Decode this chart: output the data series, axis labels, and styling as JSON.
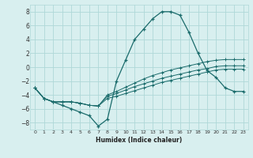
{
  "xlabel": "Humidex (Indice chaleur)",
  "background_color": "#d8efef",
  "grid_color": "#afd8d8",
  "line_color": "#1a6b6b",
  "xlim": [
    -0.5,
    23.5
  ],
  "ylim": [
    -9,
    9
  ],
  "xticks": [
    0,
    1,
    2,
    3,
    4,
    5,
    6,
    7,
    8,
    9,
    10,
    11,
    12,
    13,
    14,
    15,
    16,
    17,
    18,
    19,
    20,
    21,
    22,
    23
  ],
  "yticks": [
    -8,
    -6,
    -4,
    -2,
    0,
    2,
    4,
    6,
    8
  ],
  "line1_x": [
    0,
    1,
    2,
    3,
    4,
    5,
    6,
    7,
    8,
    9,
    10,
    11,
    12,
    13,
    14,
    15,
    16,
    17,
    18,
    19,
    20,
    21,
    22,
    23
  ],
  "line1_y": [
    -3,
    -4.5,
    -5,
    -5.5,
    -6,
    -6.5,
    -7,
    -8.5,
    -7.5,
    -2,
    1,
    4,
    5.5,
    7,
    8,
    8,
    7.5,
    5,
    2,
    -0.5,
    -1.5,
    -3,
    -3.5,
    -3.5
  ],
  "line2_x": [
    0,
    1,
    2,
    3,
    4,
    5,
    6,
    7,
    8,
    9,
    10,
    11,
    12,
    13,
    14,
    15,
    16,
    17,
    18,
    19,
    20,
    21,
    22,
    23
  ],
  "line2_y": [
    -3,
    -4.5,
    -5,
    -5,
    -5,
    -5.2,
    -5.5,
    -5.6,
    -4.5,
    -4.2,
    -3.8,
    -3.4,
    -3.0,
    -2.6,
    -2.2,
    -1.9,
    -1.6,
    -1.3,
    -1.0,
    -0.7,
    -0.4,
    -0.3,
    -0.3,
    -0.3
  ],
  "line3_x": [
    0,
    1,
    2,
    3,
    4,
    5,
    6,
    7,
    8,
    9,
    10,
    11,
    12,
    13,
    14,
    15,
    16,
    17,
    18,
    19,
    20,
    21,
    22,
    23
  ],
  "line3_y": [
    -3,
    -4.5,
    -5,
    -5,
    -5,
    -5.2,
    -5.5,
    -5.6,
    -4.2,
    -3.8,
    -3.3,
    -2.8,
    -2.4,
    -2.0,
    -1.6,
    -1.3,
    -1.0,
    -0.7,
    -0.4,
    -0.2,
    0.1,
    0.2,
    0.2,
    0.2
  ],
  "line4_x": [
    0,
    1,
    2,
    3,
    4,
    5,
    6,
    7,
    8,
    9,
    10,
    11,
    12,
    13,
    14,
    15,
    16,
    17,
    18,
    19,
    20,
    21,
    22,
    23
  ],
  "line4_y": [
    -3,
    -4.5,
    -5,
    -5,
    -5,
    -5.2,
    -5.5,
    -5.6,
    -4.0,
    -3.5,
    -2.9,
    -2.3,
    -1.7,
    -1.2,
    -0.8,
    -0.4,
    -0.1,
    0.2,
    0.5,
    0.8,
    1.0,
    1.1,
    1.1,
    1.1
  ]
}
